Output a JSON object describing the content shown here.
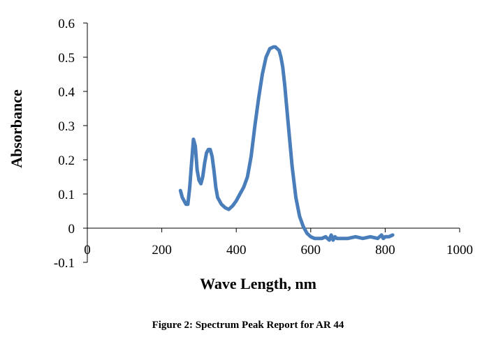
{
  "caption": "Figure 2: Spectrum Peak Report for AR 44",
  "colors": {
    "series": "#4a7ebb",
    "axis": "#000000"
  },
  "chart_data": {
    "type": "line",
    "title": "",
    "xlabel": "Wave Length, nm",
    "ylabel": "Absorbance",
    "xlim": [
      0,
      1000
    ],
    "ylim": [
      -0.1,
      0.6
    ],
    "x_ticks": [
      "0",
      "200",
      "400",
      "600",
      "800",
      "1000"
    ],
    "y_ticks": [
      "0.6",
      "0.5",
      "0.4",
      "0.3",
      "0.2",
      "0.1",
      "0",
      "-0.1"
    ],
    "grid": false,
    "legend": "none",
    "series": [
      {
        "x": [
          250,
          255,
          260,
          265,
          270,
          275,
          280,
          285,
          290,
          295,
          300,
          305,
          310,
          315,
          320,
          325,
          330,
          335,
          340,
          345,
          350,
          360,
          370,
          380,
          390,
          400,
          410,
          420,
          430,
          440,
          450,
          460,
          470,
          480,
          490,
          500,
          505,
          510,
          515,
          520,
          525,
          530,
          540,
          550,
          560,
          570,
          580,
          590,
          595,
          600,
          610,
          620,
          630,
          640,
          650,
          655,
          660,
          665,
          670,
          680,
          700,
          720,
          740,
          760,
          780,
          790,
          795,
          800,
          810,
          820
        ],
        "y": [
          0.11,
          0.09,
          0.08,
          0.07,
          0.07,
          0.12,
          0.19,
          0.26,
          0.24,
          0.17,
          0.14,
          0.13,
          0.15,
          0.19,
          0.22,
          0.23,
          0.23,
          0.21,
          0.17,
          0.12,
          0.09,
          0.07,
          0.06,
          0.055,
          0.065,
          0.08,
          0.1,
          0.12,
          0.15,
          0.21,
          0.3,
          0.38,
          0.45,
          0.5,
          0.525,
          0.53,
          0.53,
          0.525,
          0.52,
          0.5,
          0.47,
          0.42,
          0.3,
          0.18,
          0.09,
          0.035,
          0.005,
          -0.015,
          -0.02,
          -0.025,
          -0.03,
          -0.03,
          -0.03,
          -0.025,
          -0.035,
          -0.02,
          -0.035,
          -0.025,
          -0.03,
          -0.03,
          -0.03,
          -0.025,
          -0.03,
          -0.025,
          -0.03,
          -0.02,
          -0.03,
          -0.025,
          -0.025,
          -0.02
        ]
      }
    ]
  }
}
